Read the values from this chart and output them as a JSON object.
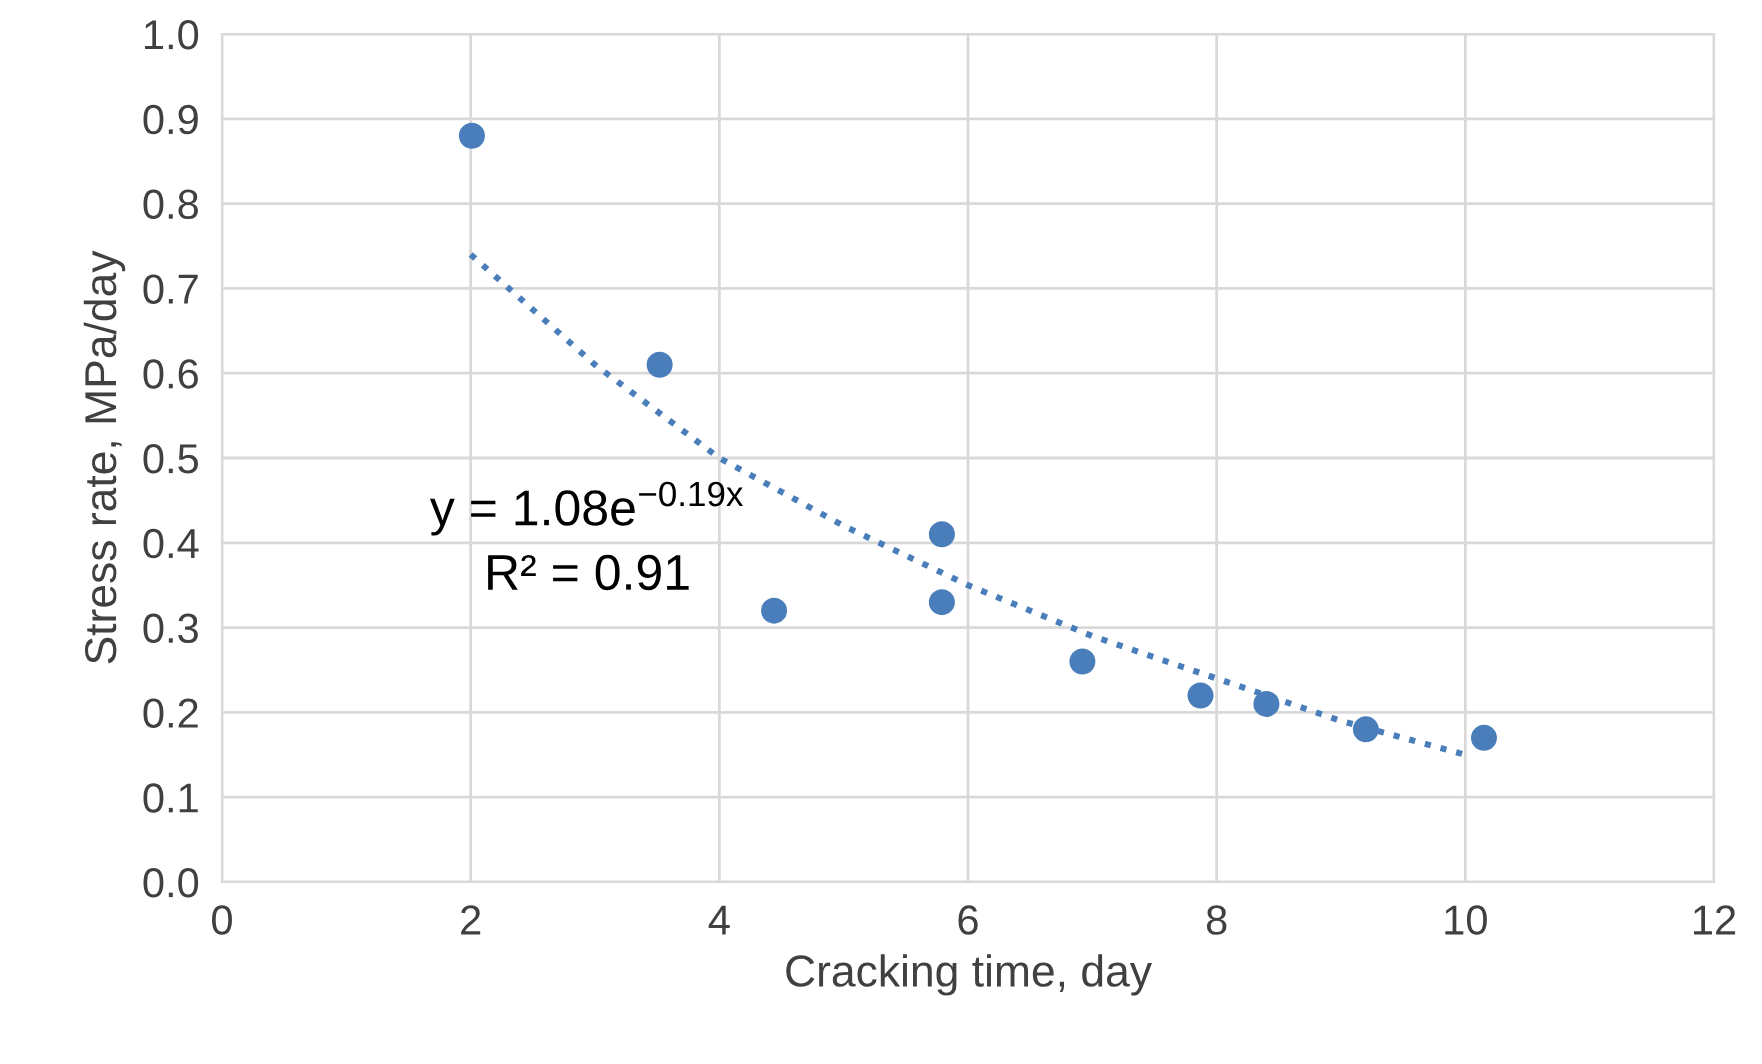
{
  "chart_data": {
    "type": "scatter",
    "xlabel": "Cracking time, day",
    "ylabel": "Stress rate, MPa/day",
    "xlim": [
      0,
      12
    ],
    "xticks": [
      0,
      2,
      4,
      6,
      8,
      10,
      12
    ],
    "ylim": [
      0,
      1.0
    ],
    "yticks": [
      {
        "value": 0,
        "label": "0.0"
      },
      {
        "value": 0.1,
        "label": "0.1"
      },
      {
        "value": 0.2,
        "label": "0.2"
      },
      {
        "value": 0.3,
        "label": "0.3"
      },
      {
        "value": 0.4,
        "label": "0.4"
      },
      {
        "value": 0.5,
        "label": "0.5"
      },
      {
        "value": 0.6,
        "label": "0.6"
      },
      {
        "value": 0.7,
        "label": "0.7"
      },
      {
        "value": 0.8,
        "label": "0.8"
      },
      {
        "value": 0.9,
        "label": "0.9"
      },
      {
        "value": 1.0,
        "label": "1.0"
      }
    ],
    "grid": true,
    "marker": "circle",
    "series": [
      {
        "color": "#4a7ebb",
        "x": [
          2.01,
          3.52,
          4.44,
          5.79,
          5.79,
          6.92,
          7.87,
          8.4,
          9.2,
          10.15
        ],
        "values": [
          0.88,
          0.61,
          0.32,
          0.41,
          0.33,
          0.26,
          0.22,
          0.21,
          0.18,
          0.17
        ]
      },
      {
        "type": "line",
        "color": "#4a7ebb",
        "line_style": "dotted",
        "marker": "none",
        "x": [
          2,
          3,
          4,
          5,
          6,
          7,
          8,
          9,
          10
        ],
        "values": [
          0.74,
          0.61,
          0.5,
          0.42,
          0.35,
          0.29,
          0.24,
          0.19,
          0.15
        ]
      }
    ],
    "annotations": [
      "y = 1.08e$^{−0.19x}$",
      "R² = 0.91"
    ]
  }
}
